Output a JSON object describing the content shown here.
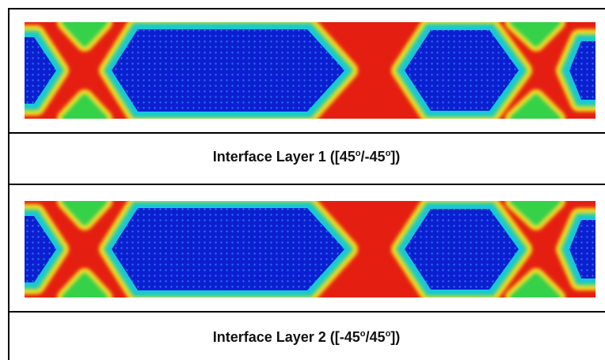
{
  "figure": {
    "panels": [
      {
        "caption": [
          "Interface Layer 1 ([45",
          "o",
          "/-45",
          "o",
          "])"
        ]
      },
      {
        "caption": [
          "Interface Layer 2 ([-45",
          "o",
          "/45",
          "o",
          "])"
        ]
      }
    ]
  }
}
